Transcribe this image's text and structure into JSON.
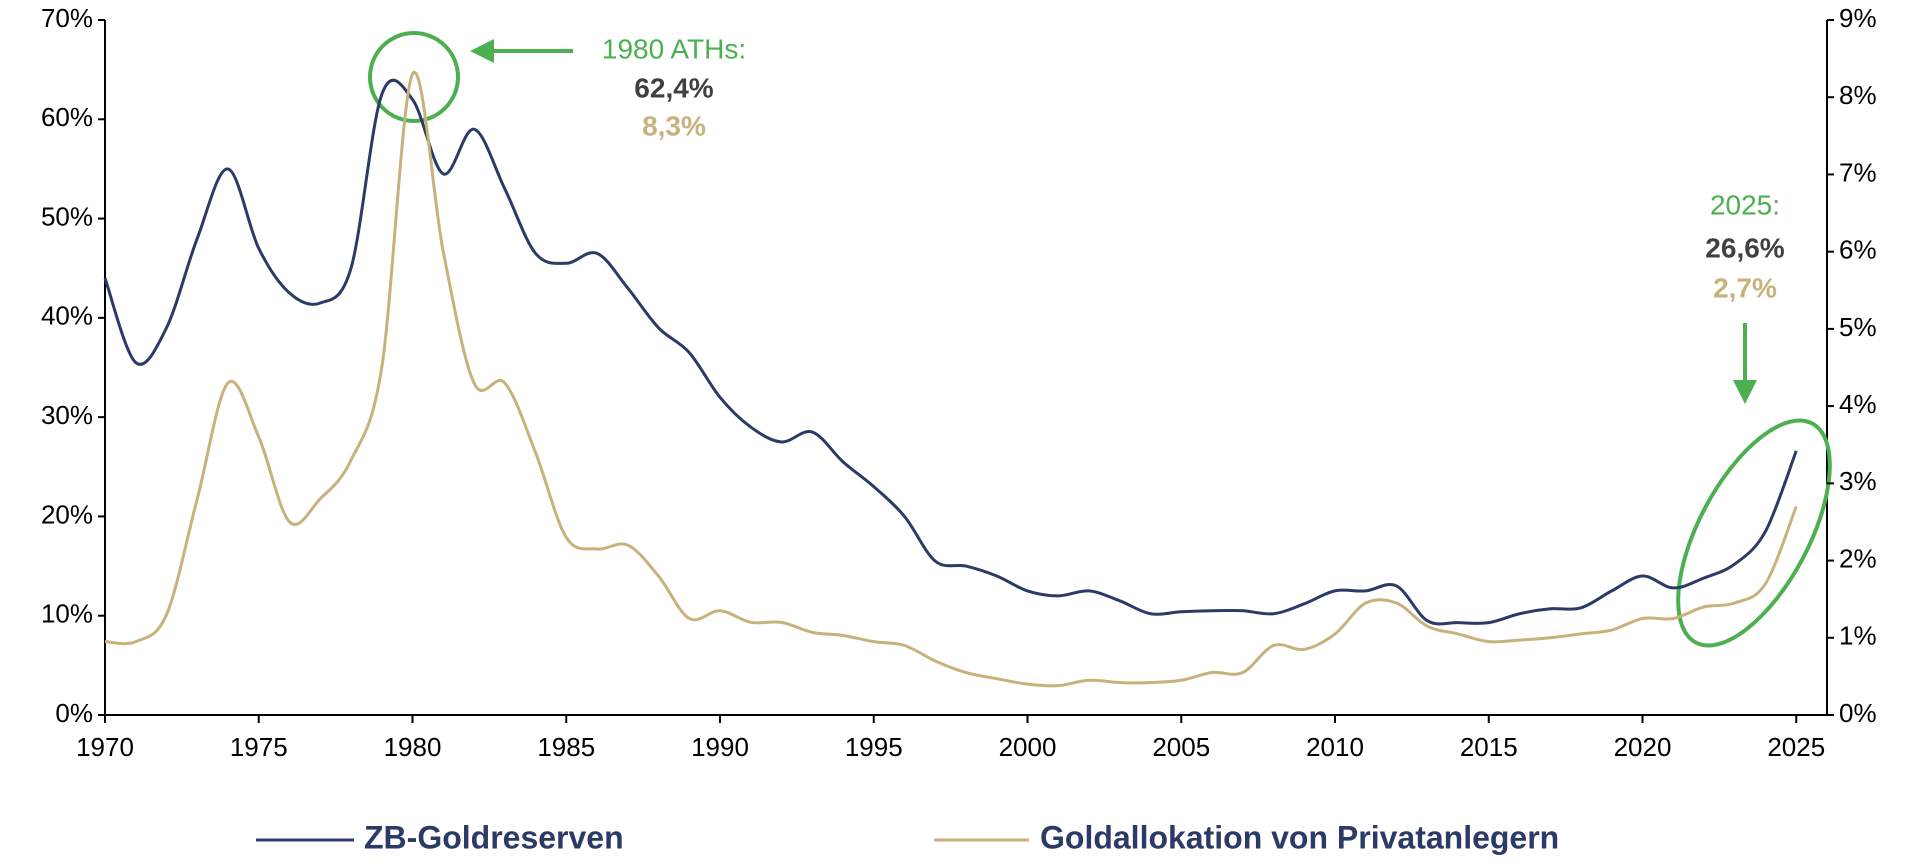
{
  "chart_data": {
    "type": "line",
    "x": [
      1970,
      1971,
      1972,
      1973,
      1974,
      1975,
      1976,
      1977,
      1978,
      1979,
      1980,
      1981,
      1982,
      1983,
      1984,
      1985,
      1986,
      1987,
      1988,
      1989,
      1990,
      1991,
      1992,
      1993,
      1994,
      1995,
      1996,
      1997,
      1998,
      1999,
      2000,
      2001,
      2002,
      2003,
      2004,
      2005,
      2006,
      2007,
      2008,
      2009,
      2010,
      2011,
      2012,
      2013,
      2014,
      2015,
      2016,
      2017,
      2018,
      2019,
      2020,
      2021,
      2022,
      2023,
      2024,
      2025
    ],
    "xlim": [
      1970,
      2026
    ],
    "xticks": [
      1970,
      1975,
      1980,
      1985,
      1990,
      1995,
      2000,
      2005,
      2010,
      2015,
      2020,
      2025
    ],
    "ylim": [
      0,
      70
    ],
    "yticks": [
      {
        "value": 0,
        "label": "0%"
      },
      {
        "value": 10,
        "label": "10%"
      },
      {
        "value": 20,
        "label": "20%"
      },
      {
        "value": 30,
        "label": "30%"
      },
      {
        "value": 40,
        "label": "40%"
      },
      {
        "value": 50,
        "label": "50%"
      },
      {
        "value": 60,
        "label": "60%"
      },
      {
        "value": 70,
        "label": "70%"
      }
    ],
    "y2lim": [
      0,
      9
    ],
    "y2ticks": [
      {
        "value": 0,
        "label": "0%"
      },
      {
        "value": 1,
        "label": "1%"
      },
      {
        "value": 2,
        "label": "2%"
      },
      {
        "value": 3,
        "label": "3%"
      },
      {
        "value": 4,
        "label": "4%"
      },
      {
        "value": 5,
        "label": "5%"
      },
      {
        "value": 6,
        "label": "6%"
      },
      {
        "value": 7,
        "label": "7%"
      },
      {
        "value": 8,
        "label": "8%"
      },
      {
        "value": 9,
        "label": "9%"
      }
    ],
    "grid": false,
    "series": [
      {
        "name": "ZB-Goldreserven",
        "color": "#2b3a67",
        "values": [
          44,
          35.5,
          39,
          48,
          55,
          47,
          42.5,
          41.5,
          45,
          62.5,
          62,
          54.5,
          59,
          53,
          46.5,
          45.5,
          46.5,
          43,
          39,
          36.5,
          32,
          29,
          27.5,
          28.5,
          25.5,
          23,
          20,
          15.5,
          15,
          14,
          12.5,
          12,
          12.5,
          11.5,
          10.2,
          10.4,
          10.5,
          10.5,
          10.2,
          11.2,
          12.5,
          12.5,
          13,
          9.5,
          9.3,
          9.3,
          10.2,
          10.7,
          10.8,
          12.5,
          14,
          12.8,
          13.8,
          15.2,
          18.5,
          26.6
        ]
      },
      {
        "name": "Goldallokation von Privatanlegern",
        "color": "#c8b27c",
        "axis": "y2",
        "values": [
          0.95,
          0.95,
          1.3,
          2.8,
          4.3,
          3.6,
          2.5,
          2.8,
          3.3,
          4.5,
          8.3,
          6,
          4.3,
          4.3,
          3.4,
          2.3,
          2.15,
          2.2,
          1.8,
          1.25,
          1.35,
          1.2,
          1.2,
          1.07,
          1.03,
          0.95,
          0.9,
          0.7,
          0.55,
          0.47,
          0.4,
          0.38,
          0.45,
          0.42,
          0.42,
          0.45,
          0.55,
          0.55,
          0.9,
          0.85,
          1.05,
          1.45,
          1.45,
          1.15,
          1.05,
          0.95,
          0.97,
          1.0,
          1.05,
          1.1,
          1.25,
          1.25,
          1.4,
          1.45,
          1.7,
          2.7
        ]
      }
    ],
    "annotations": [
      {
        "text": "1980 ATHs:",
        "color": "#4caf50"
      },
      {
        "text": "62,4%",
        "color": "#404040"
      },
      {
        "text": "8,3%",
        "color": "#c8b27c"
      },
      {
        "text": "2025:",
        "color": "#4caf50"
      },
      {
        "text": "26,6%",
        "color": "#404040"
      },
      {
        "text": "2,7%",
        "color": "#c8b27c"
      }
    ]
  }
}
